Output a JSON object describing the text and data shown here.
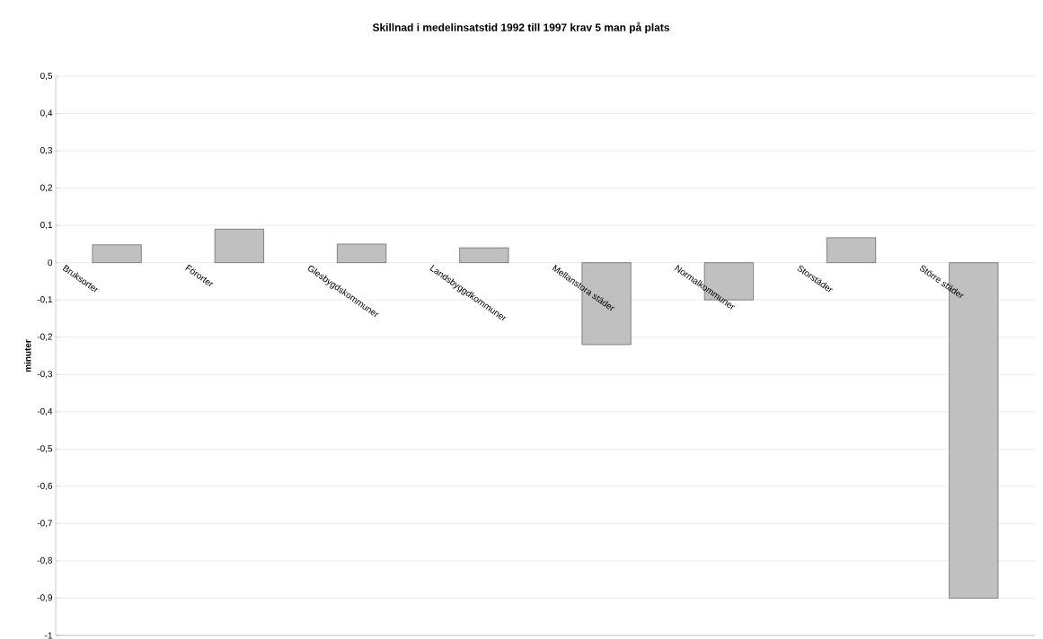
{
  "chart_data": {
    "type": "bar",
    "title": "Skillnad i medelinsatstid 1992 till 1997 krav 5 man på plats",
    "ylabel": "minuter",
    "categories": [
      "Bruksorter",
      "Förorter",
      "Glesbygdskommuner",
      "Landsbyggdkommuner",
      "Mellanstora städer",
      "Normalkommuner",
      "Storstäder",
      "Större städer"
    ],
    "values": [
      0.048,
      0.09,
      0.05,
      0.04,
      -0.22,
      -0.1,
      0.067,
      -0.9
    ],
    "color": "#c0c0c0",
    "ylim": [
      -1,
      0.5
    ],
    "yticks": [
      {
        "value": -1,
        "label": "-1"
      },
      {
        "value": -0.9,
        "label": "-0,9"
      },
      {
        "value": -0.8,
        "label": "-0,8"
      },
      {
        "value": -0.7,
        "label": "-0,7"
      },
      {
        "value": -0.6,
        "label": "-0,6"
      },
      {
        "value": -0.5,
        "label": "-0,5"
      },
      {
        "value": -0.4,
        "label": "-0,4"
      },
      {
        "value": -0.3,
        "label": "-0,3"
      },
      {
        "value": -0.2,
        "label": "-0,2"
      },
      {
        "value": -0.1,
        "label": "-0,1"
      },
      {
        "value": 0,
        "label": "0"
      },
      {
        "value": 0.1,
        "label": "0,1"
      },
      {
        "value": 0.2,
        "label": "0,2"
      },
      {
        "value": 0.3,
        "label": "0,3"
      },
      {
        "value": 0.4,
        "label": "0,4"
      },
      {
        "value": 0.5,
        "label": "0,5"
      }
    ],
    "grid": "y"
  }
}
